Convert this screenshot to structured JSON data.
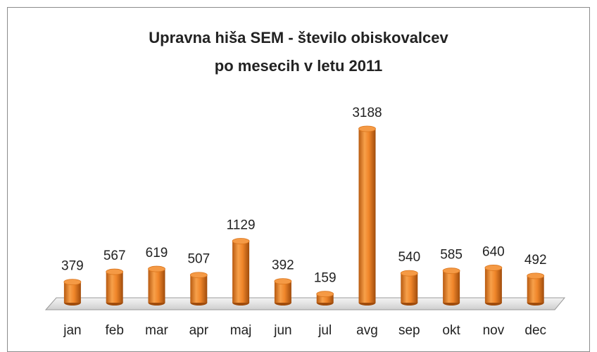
{
  "chart_data": {
    "type": "bar",
    "title": [
      "Upravna hiša SEM - število obiskovalcev",
      "po mesecih v letu 2011"
    ],
    "categories": [
      "jan",
      "feb",
      "mar",
      "apr",
      "maj",
      "jun",
      "jul",
      "avg",
      "sep",
      "okt",
      "nov",
      "dec"
    ],
    "values": [
      379,
      567,
      619,
      507,
      1129,
      392,
      159,
      3188,
      540,
      585,
      640,
      492
    ],
    "color": "#f0862a"
  }
}
